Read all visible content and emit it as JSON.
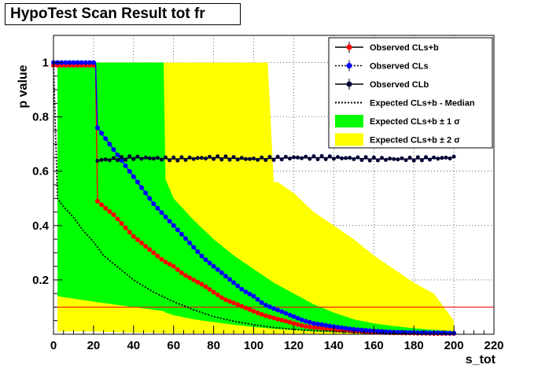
{
  "chart_data": {
    "type": "line",
    "title": "HypoTest Scan Result tot fr",
    "xlabel": "s_tot",
    "ylabel": "p value",
    "xlim": [
      0,
      220
    ],
    "ylim": [
      0,
      1.1
    ],
    "xticks": [
      0,
      20,
      40,
      60,
      80,
      100,
      120,
      140,
      160,
      180,
      200,
      220
    ],
    "yticks": [
      0.2,
      0.4,
      0.6,
      0.8,
      1
    ],
    "grid": true,
    "legend_position": "top-right",
    "reference_line": {
      "y": 0.1,
      "color": "#ff0000"
    },
    "legend": [
      {
        "label": "Observed CLs+b",
        "style": "marker-line",
        "color": "#ff0000"
      },
      {
        "label": "Observed CLs",
        "style": "marker-dotted",
        "color": "#0000ff"
      },
      {
        "label": "Observed CLb",
        "style": "marker-line",
        "color": "#000033"
      },
      {
        "label": "Expected CLs+b - Median",
        "style": "dotted-line",
        "color": "#000000"
      },
      {
        "label": "Expected CLs+b ± 1 σ",
        "style": "fill",
        "color": "#00ff00"
      },
      {
        "label": "Expected CLs+b ± 2 σ",
        "style": "fill",
        "color": "#ffff00"
      }
    ],
    "series": [
      {
        "name": "Observed CLs+b",
        "color": "#ff0000",
        "x": [
          0,
          5,
          10,
          15,
          20,
          21,
          22,
          25,
          30,
          35,
          40,
          45,
          50,
          55,
          60,
          65,
          70,
          75,
          80,
          85,
          90,
          95,
          100,
          105,
          110,
          115,
          120,
          125,
          130,
          140,
          150,
          160,
          170,
          180,
          190,
          200
        ],
        "y": [
          0.99,
          0.99,
          0.99,
          0.99,
          0.99,
          0.99,
          0.49,
          0.47,
          0.44,
          0.4,
          0.36,
          0.33,
          0.3,
          0.27,
          0.25,
          0.22,
          0.2,
          0.18,
          0.155,
          0.13,
          0.115,
          0.1,
          0.085,
          0.07,
          0.06,
          0.05,
          0.04,
          0.03,
          0.025,
          0.018,
          0.012,
          0.008,
          0.005,
          0.004,
          0.003,
          0.003
        ]
      },
      {
        "name": "Observed CLs",
        "color": "#0000ff",
        "x": [
          0,
          5,
          10,
          15,
          20,
          21,
          22,
          25,
          30,
          35,
          40,
          45,
          50,
          55,
          60,
          65,
          70,
          75,
          80,
          85,
          90,
          95,
          100,
          105,
          110,
          115,
          120,
          125,
          130,
          140,
          150,
          160,
          170,
          180,
          190,
          200
        ],
        "y": [
          1.0,
          1.0,
          1.0,
          1.0,
          1.0,
          1.0,
          0.76,
          0.73,
          0.68,
          0.63,
          0.58,
          0.53,
          0.48,
          0.44,
          0.4,
          0.36,
          0.32,
          0.28,
          0.25,
          0.22,
          0.19,
          0.16,
          0.14,
          0.11,
          0.095,
          0.08,
          0.065,
          0.05,
          0.04,
          0.028,
          0.018,
          0.012,
          0.008,
          0.006,
          0.005,
          0.004
        ]
      },
      {
        "name": "Observed CLb",
        "color": "#000033",
        "x": [
          22,
          40,
          60,
          80,
          100,
          120,
          140,
          160,
          180,
          200
        ],
        "y": [
          0.64,
          0.65,
          0.645,
          0.65,
          0.645,
          0.65,
          0.65,
          0.645,
          0.645,
          0.65
        ]
      },
      {
        "name": "Expected CLs+b - Median",
        "color": "#000000",
        "x": [
          0,
          2,
          5,
          10,
          15,
          20,
          25,
          30,
          40,
          50,
          60,
          70,
          80,
          90,
          100,
          110,
          120,
          130,
          140,
          150,
          160,
          170,
          180,
          190,
          200
        ],
        "y": [
          1.0,
          0.5,
          0.47,
          0.43,
          0.38,
          0.34,
          0.29,
          0.26,
          0.2,
          0.155,
          0.12,
          0.09,
          0.065,
          0.048,
          0.035,
          0.025,
          0.018,
          0.013,
          0.01,
          0.007,
          0.005,
          0.004,
          0.003,
          0.002,
          0.002
        ]
      }
    ],
    "bands": [
      {
        "name": "Expected CLs+b ± 2 σ",
        "color": "#ffff00",
        "x": [
          2,
          20,
          30,
          40,
          50,
          56,
          60,
          80,
          100,
          107,
          110,
          112,
          120,
          130,
          140,
          150,
          160,
          170,
          180,
          190,
          200
        ],
        "upper": [
          1.0,
          1.0,
          1.0,
          1.0,
          1.0,
          1.0,
          1.0,
          1.0,
          1.0,
          1.0,
          0.56,
          0.56,
          0.52,
          0.45,
          0.4,
          0.35,
          0.29,
          0.24,
          0.19,
          0.15,
          0.05
        ],
        "lower": [
          0.01,
          0.01,
          0.008,
          0.006,
          0.005,
          0.004,
          0.004,
          0.003,
          0.003,
          0.002,
          0.002,
          0.002,
          0.002,
          0.002,
          0.001,
          0.001,
          0.001,
          0.001,
          0.001,
          0.001,
          0.001
        ]
      },
      {
        "name": "Expected CLs+b ± 1 σ",
        "color": "#00ff00",
        "x": [
          2,
          20,
          30,
          40,
          50,
          55,
          56,
          60,
          70,
          80,
          90,
          100,
          110,
          120,
          130,
          140,
          150,
          160,
          170,
          180,
          190,
          200
        ],
        "upper": [
          1.0,
          1.0,
          1.0,
          1.0,
          1.0,
          1.0,
          0.57,
          0.5,
          0.42,
          0.35,
          0.29,
          0.24,
          0.19,
          0.15,
          0.11,
          0.08,
          0.055,
          0.04,
          0.03,
          0.022,
          0.016,
          0.012
        ],
        "lower": [
          0.14,
          0.12,
          0.11,
          0.1,
          0.09,
          0.085,
          0.08,
          0.07,
          0.055,
          0.045,
          0.035,
          0.027,
          0.02,
          0.015,
          0.011,
          0.008,
          0.006,
          0.004,
          0.003,
          0.002,
          0.002,
          0.001
        ]
      }
    ]
  }
}
